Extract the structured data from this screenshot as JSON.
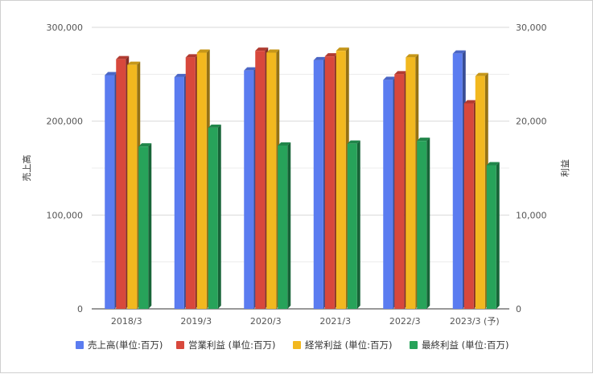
{
  "chart_data": {
    "type": "bar",
    "categories": [
      "2018/3",
      "2019/3",
      "2020/3",
      "2021/3",
      "2022/3",
      "2023/3 (予)"
    ],
    "left_axis": {
      "label": "売上高",
      "range": [
        0,
        300000
      ],
      "ticks": [
        "0",
        "100,000",
        "200,000",
        "300,000"
      ]
    },
    "right_axis": {
      "label": "利益",
      "range": [
        0,
        30000
      ],
      "ticks": [
        "0",
        "10,000",
        "20,000",
        "30,000"
      ]
    },
    "series": [
      {
        "name": "売上高(単位:百万)",
        "axis": "left",
        "color": "#5b7cf0",
        "values": [
          249000,
          247000,
          254000,
          265000,
          244000,
          272000
        ]
      },
      {
        "name": "営業利益 (単位:百万)",
        "axis": "right",
        "color": "#d8483c",
        "values": [
          26600,
          26800,
          27500,
          26900,
          25000,
          21900
        ]
      },
      {
        "name": "経常利益 (単位:百万)",
        "axis": "right",
        "color": "#f2b81f",
        "values": [
          26000,
          27300,
          27300,
          27500,
          26800,
          24800
        ]
      },
      {
        "name": "最終利益 (単位:百万)",
        "axis": "right",
        "color": "#27a35a",
        "values": [
          17300,
          19300,
          17400,
          17600,
          17900,
          15300
        ]
      }
    ],
    "grid": true,
    "legend_position": "bottom"
  }
}
